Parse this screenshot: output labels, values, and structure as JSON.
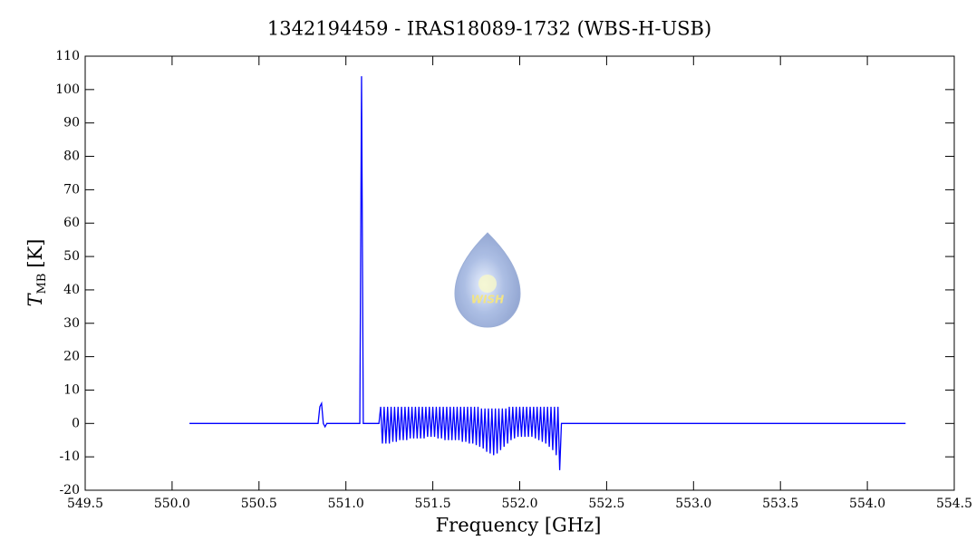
{
  "chart_data": {
    "type": "line",
    "title": "1342194459 - IRAS18089-1732 (WBS-H-USB)",
    "xlabel": "Frequency [GHz]",
    "ylabel": "T",
    "ylabel_sub": "MB",
    "ylabel_unit": "[K]",
    "watermark": "WISH",
    "xlim": [
      549.5,
      554.5
    ],
    "ylim": [
      -20,
      110
    ],
    "xticks": [
      549.5,
      {
        "value": 550,
        "label": "550.0"
      },
      550.5,
      {
        "value": 551,
        "label": "551.0"
      },
      551.5,
      {
        "value": 552,
        "label": "552.0"
      },
      552.5,
      {
        "value": 553,
        "label": "553.0"
      },
      553.5,
      {
        "value": 554,
        "label": "554.0"
      },
      554.5
    ],
    "yticks": [
      -20,
      -10,
      0,
      10,
      20,
      30,
      40,
      50,
      60,
      70,
      80,
      90,
      100,
      110
    ],
    "series": [
      {
        "color": "#0000ff",
        "x": [
          550.1,
          550.3,
          550.5,
          550.7,
          550.84,
          550.85,
          550.86,
          550.87,
          550.88,
          550.89,
          551.0,
          551.08,
          551.09,
          551.1,
          551.19,
          551.2,
          551.21,
          551.22,
          551.23,
          551.24,
          551.25,
          551.26,
          551.27,
          551.28,
          551.29,
          551.3,
          551.31,
          551.32,
          551.33,
          551.34,
          551.35,
          551.36,
          551.37,
          551.38,
          551.39,
          551.4,
          551.41,
          551.42,
          551.43,
          551.44,
          551.45,
          551.46,
          551.47,
          551.48,
          551.49,
          551.5,
          551.51,
          551.52,
          551.53,
          551.54,
          551.55,
          551.56,
          551.57,
          551.58,
          551.59,
          551.6,
          551.61,
          551.62,
          551.63,
          551.64,
          551.65,
          551.66,
          551.67,
          551.68,
          551.69,
          551.7,
          551.71,
          551.72,
          551.73,
          551.74,
          551.75,
          551.76,
          551.77,
          551.78,
          551.79,
          551.8,
          551.81,
          551.82,
          551.83,
          551.84,
          551.85,
          551.86,
          551.87,
          551.88,
          551.89,
          551.9,
          551.91,
          551.92,
          551.93,
          551.94,
          551.95,
          551.96,
          551.97,
          551.98,
          551.99,
          552.0,
          552.01,
          552.02,
          552.03,
          552.04,
          552.05,
          552.06,
          552.07,
          552.08,
          552.09,
          552.1,
          552.11,
          552.12,
          552.13,
          552.14,
          552.15,
          552.16,
          552.17,
          552.18,
          552.19,
          552.2,
          552.21,
          552.22,
          552.23,
          552.24,
          552.5,
          553.0,
          553.5,
          554.0,
          554.22
        ],
        "values": [
          0,
          0,
          0,
          0,
          0,
          5,
          6,
          0,
          -1,
          0,
          0,
          0,
          104,
          0,
          0,
          5,
          -6,
          5,
          -6,
          5,
          -6,
          5,
          -5.5,
          5,
          -5.5,
          5,
          -5,
          5,
          -5,
          5,
          -5,
          5,
          -4.5,
          5,
          -4.5,
          5,
          -4.5,
          5,
          -4.5,
          5,
          -4.5,
          5,
          -4,
          5,
          -4,
          5,
          -4,
          5,
          -4.5,
          5,
          -4.5,
          5,
          -5,
          5,
          -5,
          5,
          -5,
          5,
          -5,
          5,
          -5,
          5,
          -5.5,
          5,
          -5.5,
          5,
          -6,
          5,
          -6,
          5,
          -6.5,
          5,
          -7,
          4.5,
          -7.5,
          4.5,
          -8.5,
          4.5,
          -9,
          4.5,
          -9.5,
          4.5,
          -9,
          4.5,
          -8,
          4.5,
          -7,
          4.5,
          -6,
          5,
          -5,
          5,
          -4.5,
          5,
          -4,
          5,
          -4,
          5,
          -4,
          5,
          -4,
          5,
          -4,
          5,
          -4.5,
          5,
          -5,
          5,
          -5.5,
          5,
          -6,
          5,
          -7,
          5,
          -8,
          5,
          -9.5,
          5,
          -14,
          0,
          0,
          0,
          0,
          0,
          0
        ]
      }
    ]
  }
}
